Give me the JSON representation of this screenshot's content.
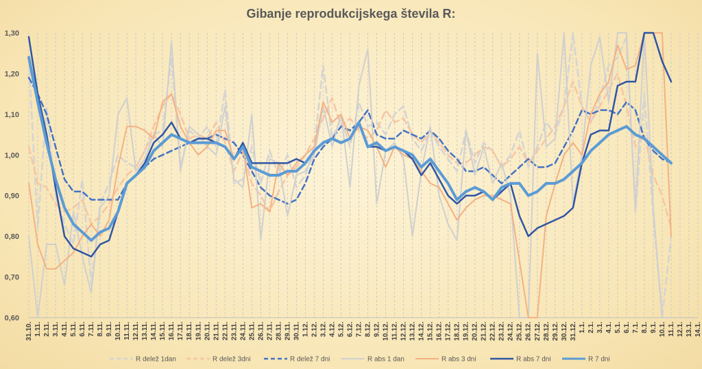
{
  "chart_data": {
    "type": "line",
    "title": "Gibanje reprodukcijskega števila R:",
    "xlabel": "",
    "ylabel": "",
    "ylim": [
      0.6,
      1.3
    ],
    "yticks": [
      "0,60",
      "0,70",
      "0,80",
      "0,90",
      "1,00",
      "1,10",
      "1,20",
      "1,30"
    ],
    "grid": "vertical-dashed",
    "legend": "bottom",
    "categories": [
      "31.10.",
      "1.11.",
      "2.11.",
      "3.11.",
      "4.11.",
      "5.11.",
      "6.11.",
      "7.11.",
      "8.11.",
      "9.11.",
      "10.11.",
      "11.11.",
      "12.11.",
      "13.11.",
      "14.11.",
      "15.11.",
      "16.11.",
      "17.11.",
      "18.11.",
      "19.11.",
      "20.11.",
      "21.11.",
      "22.11.",
      "23.11.",
      "24.11.",
      "25.11.",
      "26.11.",
      "27.11.",
      "28.11.",
      "29.11.",
      "30.11.",
      "1.12.",
      "2.12.",
      "3.12.",
      "4.12.",
      "5.12.",
      "6.12.",
      "7.12.",
      "8.12.",
      "9.12.",
      "10.12.",
      "11.12.",
      "12.12.",
      "13.12.",
      "14.12.",
      "15.12.",
      "16.12.",
      "17.12.",
      "18.12.",
      "19.12.",
      "20.12.",
      "21.12.",
      "22.12.",
      "23.12.",
      "24.12.",
      "25.12.",
      "26.12.",
      "27.12.",
      "28.12.",
      "29.12.",
      "30.12.",
      "31.12.",
      "1.1.",
      "2.1.",
      "3.1.",
      "4.1.",
      "5.1.",
      "6.1.",
      "7.1.",
      "8.1.",
      "9.1.",
      "10.1.",
      "11.1.",
      "12.1.",
      "13.1.",
      "14.1."
    ],
    "series": [
      {
        "name": "R delež 1dan",
        "color": "#d4d4d4",
        "dash": "10,6",
        "width": 2.5,
        "values": [
          1.24,
          0.82,
          1.12,
          0.9,
          0.83,
          0.78,
          0.94,
          0.68,
          0.88,
          0.93,
          1.0,
          0.98,
          0.97,
          1.01,
          1.05,
          1.06,
          1.24,
          0.97,
          1.06,
          1.04,
          1.07,
          1.02,
          1.16,
          0.93,
          0.94,
          1.02,
          0.93,
          1.01,
          0.95,
          1.0,
          0.92,
          0.95,
          1.02,
          1.22,
          1.04,
          1.09,
          1.02,
          1.13,
          1.07,
          1.08,
          1.05,
          1.1,
          1.12,
          1.04,
          1.01,
          1.06,
          1.02,
          0.99,
          0.96,
          1.06,
          0.98,
          1.03,
          1.01,
          0.97,
          1.0,
          1.06,
          0.97,
          1.02,
          1.08,
          1.05,
          1.12,
          1.3,
          1.12,
          1.08,
          1.14,
          1.22,
          1.24,
          1.29,
          0.86,
          1.15,
          0.85,
          0.6,
          0.8,
          null,
          null,
          null
        ]
      },
      {
        "name": "R delež 3dni",
        "color": "#f6c6a4",
        "dash": "10,6",
        "width": 2.5,
        "values": [
          1.02,
          0.93,
          0.92,
          0.88,
          0.86,
          0.87,
          0.89,
          0.83,
          0.85,
          0.88,
          0.92,
          0.95,
          0.97,
          1.01,
          1.07,
          1.12,
          1.15,
          1.1,
          1.04,
          1.05,
          1.04,
          1.08,
          1.03,
          0.96,
          1.01,
          0.93,
          0.9,
          0.86,
          0.91,
          0.95,
          0.97,
          1.0,
          1.04,
          1.09,
          1.14,
          1.07,
          1.09,
          1.06,
          1.04,
          1.06,
          1.11,
          1.08,
          1.09,
          1.05,
          1.03,
          1.06,
          1.03,
          1.0,
          0.98,
          0.98,
          1.0,
          1.02,
          1.01,
          0.97,
          0.99,
          1.02,
          0.98,
          1.01,
          1.04,
          1.07,
          1.12,
          1.18,
          1.12,
          1.08,
          1.12,
          1.16,
          1.2,
          1.12,
          1.02,
          1.05,
          0.95,
          0.9,
          0.82,
          null,
          null,
          null
        ]
      },
      {
        "name": "R delež 7 dni",
        "color": "#4472c4",
        "dash": "8,5",
        "width": 2.5,
        "values": [
          1.19,
          1.15,
          1.1,
          1.02,
          0.94,
          0.91,
          0.91,
          0.89,
          0.89,
          0.89,
          0.89,
          0.93,
          0.95,
          0.97,
          0.99,
          1.0,
          1.01,
          1.02,
          1.03,
          1.04,
          1.04,
          1.05,
          1.04,
          1.03,
          1.0,
          0.96,
          0.92,
          0.9,
          0.89,
          0.88,
          0.89,
          0.93,
          0.99,
          1.02,
          1.04,
          1.07,
          1.06,
          1.08,
          1.11,
          1.05,
          1.04,
          1.04,
          1.06,
          1.05,
          1.04,
          1.06,
          1.04,
          1.01,
          0.99,
          0.96,
          0.96,
          0.97,
          0.95,
          0.93,
          0.95,
          0.97,
          0.99,
          0.97,
          0.97,
          0.98,
          1.02,
          1.06,
          1.11,
          1.1,
          1.11,
          1.11,
          1.1,
          1.13,
          1.11,
          1.04,
          1.01,
          0.99,
          0.98,
          null,
          null,
          null
        ]
      },
      {
        "name": "R abs 1 dan",
        "color": "#cfcfcf",
        "dash": "",
        "width": 2,
        "values": [
          0.8,
          0.6,
          0.78,
          0.78,
          0.68,
          0.86,
          0.75,
          0.66,
          0.87,
          0.9,
          1.1,
          1.14,
          0.96,
          0.99,
          1.05,
          1.02,
          1.28,
          0.96,
          1.07,
          1.05,
          1.02,
          1.0,
          1.12,
          0.94,
          0.92,
          1.1,
          0.79,
          0.99,
          0.98,
          0.85,
          0.95,
          0.96,
          1.0,
          1.12,
          1.02,
          1.1,
          0.92,
          1.17,
          1.26,
          0.88,
          1.01,
          1.03,
          0.99,
          0.8,
          0.96,
          1.07,
          0.9,
          0.83,
          0.79,
          1.06,
          0.95,
          1.02,
          0.93,
          0.98,
          0.9,
          0.6,
          0.6,
          1.25,
          1.02,
          1.04,
          1.3,
          0.88,
          1.0,
          1.22,
          1.29,
          1.13,
          1.3,
          1.3,
          0.86,
          1.3,
          0.87,
          0.6,
          0.6,
          null,
          null,
          null
        ]
      },
      {
        "name": "R abs 3 dni",
        "color": "#f4b183",
        "dash": "",
        "width": 2,
        "values": [
          0.93,
          0.78,
          0.72,
          0.72,
          0.74,
          0.76,
          0.8,
          0.83,
          0.8,
          0.84,
          0.97,
          1.07,
          1.07,
          1.06,
          1.04,
          1.13,
          1.15,
          1.07,
          1.03,
          1.0,
          1.02,
          1.06,
          1.06,
          0.99,
          1.02,
          0.87,
          0.88,
          0.86,
          0.98,
          0.95,
          0.98,
          1.0,
          1.02,
          1.13,
          1.08,
          1.1,
          1.04,
          1.07,
          1.06,
          1.02,
          0.97,
          1.02,
          1.0,
          0.99,
          0.96,
          0.93,
          0.92,
          0.88,
          0.84,
          0.87,
          0.89,
          0.9,
          0.9,
          0.89,
          0.88,
          0.74,
          0.6,
          0.6,
          0.85,
          0.93,
          1.0,
          1.03,
          1.0,
          1.1,
          1.15,
          1.18,
          1.27,
          1.21,
          1.22,
          1.3,
          1.3,
          1.3,
          0.8,
          null,
          null,
          null
        ]
      },
      {
        "name": "R abs 7 dni",
        "color": "#2f55a4",
        "dash": "",
        "width": 2.5,
        "values": [
          1.29,
          1.15,
          1.05,
          0.92,
          0.8,
          0.77,
          0.76,
          0.75,
          0.78,
          0.79,
          0.86,
          0.93,
          0.95,
          0.98,
          1.03,
          1.05,
          1.08,
          1.04,
          1.03,
          1.04,
          1.04,
          1.03,
          1.02,
          0.99,
          1.03,
          0.98,
          0.98,
          0.98,
          0.98,
          0.98,
          0.99,
          0.98,
          1.01,
          1.03,
          1.04,
          1.03,
          1.04,
          1.08,
          1.02,
          1.02,
          1.01,
          1.02,
          1.01,
          0.99,
          0.95,
          0.98,
          0.94,
          0.9,
          0.88,
          0.9,
          0.9,
          0.91,
          0.89,
          0.91,
          0.93,
          0.85,
          0.8,
          0.82,
          0.83,
          0.84,
          0.85,
          0.87,
          0.98,
          1.05,
          1.06,
          1.06,
          1.17,
          1.18,
          1.18,
          1.3,
          1.3,
          1.23,
          1.18,
          null,
          null,
          null
        ]
      },
      {
        "name": "R 7 dni",
        "color": "#5b9bd5",
        "dash": "",
        "width": 4,
        "values": [
          1.24,
          1.13,
          1.03,
          0.94,
          0.87,
          0.83,
          0.81,
          0.79,
          0.81,
          0.82,
          0.86,
          0.93,
          0.95,
          0.97,
          1.01,
          1.03,
          1.05,
          1.04,
          1.03,
          1.03,
          1.03,
          1.03,
          1.02,
          0.99,
          1.02,
          0.97,
          0.96,
          0.95,
          0.95,
          0.96,
          0.96,
          0.98,
          1.01,
          1.03,
          1.04,
          1.03,
          1.04,
          1.08,
          1.02,
          1.03,
          1.01,
          1.02,
          1.01,
          1.0,
          0.97,
          0.99,
          0.96,
          0.93,
          0.89,
          0.91,
          0.92,
          0.91,
          0.89,
          0.92,
          0.93,
          0.93,
          0.9,
          0.91,
          0.93,
          0.93,
          0.94,
          0.96,
          0.98,
          1.01,
          1.03,
          1.05,
          1.06,
          1.07,
          1.05,
          1.04,
          1.02,
          1.0,
          0.98,
          null,
          null,
          null
        ]
      }
    ]
  }
}
